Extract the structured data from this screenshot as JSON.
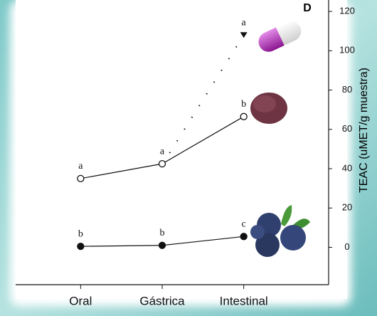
{
  "chart_data": {
    "type": "line",
    "panel_label": "D",
    "y_label": "TEAC (uMET/g muestra)",
    "categories": [
      "Oral",
      "Gástrica",
      "Intestinal"
    ],
    "ylim": [
      -19,
      124
    ],
    "yticks": [
      0,
      20,
      40,
      60,
      80,
      100,
      120
    ],
    "series": [
      {
        "color": "#111111",
        "marker": "triangle",
        "line": "dotted",
        "values": [
          null,
          42,
          108
        ],
        "letters": [
          null,
          null,
          "a"
        ]
      },
      {
        "color": "#111111",
        "marker": "open-circle",
        "line": "solid",
        "values": [
          35,
          42.5,
          66.5
        ],
        "letters": [
          "a",
          "a",
          "b"
        ]
      },
      {
        "color": "#111111",
        "marker": "filled-circle",
        "line": "solid",
        "values": [
          0.5,
          1,
          5.5
        ],
        "letters": [
          "b",
          "b",
          "c"
        ]
      }
    ]
  }
}
